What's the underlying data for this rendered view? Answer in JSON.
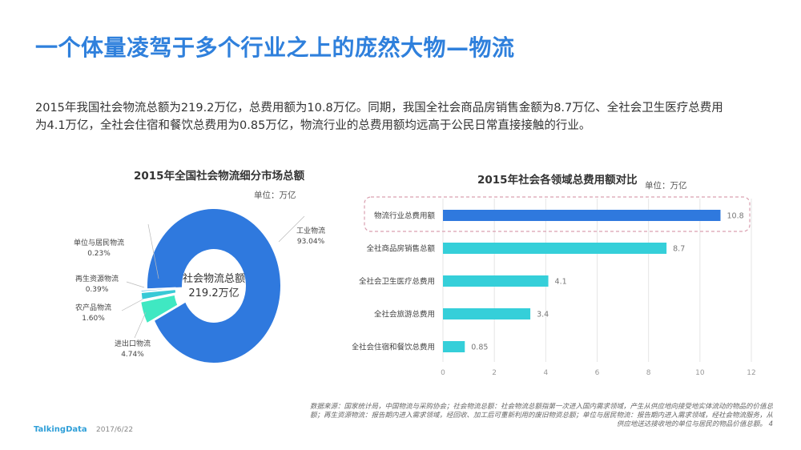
{
  "title": "一个体量凌驾于多个行业之上的庞然大物—物流",
  "paragraph": {
    "line1": "2015年我国社会物流总额为219.2万亿，总费用额为10.8万亿。同期，我国全社会商品房销售金额为8.7万亿、全社会卫生医疗总费用",
    "line2": "为4.1万亿，全社会住宿和餐饮总费用为0.85万亿，物流行业的总费用额均远高于公民日常直接接触的行业。"
  },
  "chart_data": [
    {
      "type": "pie",
      "title": "2015年全国社会物流细分市场总额",
      "unit": "单位：万亿",
      "center_label": "社会物流总额",
      "center_value": "219.2万亿",
      "slices": [
        {
          "name": "工业物流",
          "label": "93.04%",
          "value": 93.04,
          "color": "#2f79de"
        },
        {
          "name": "进出口物流",
          "label": "4.74%",
          "value": 4.74,
          "color": "#3fe8c2"
        },
        {
          "name": "农产品物流",
          "label": "1.60%",
          "value": 1.6,
          "color": "#38c9d6"
        },
        {
          "name": "再生资源物流",
          "label": "0.39%",
          "value": 0.39,
          "color": "#2a9fd0"
        },
        {
          "name": "单位与居民物流",
          "label": "0.23%",
          "value": 0.23,
          "color": "#2f79de"
        }
      ]
    },
    {
      "type": "bar",
      "orientation": "horizontal",
      "title": "2015年社会各领域总费用额对比",
      "unit": "单位：万亿",
      "categories": [
        "物流行业总费用额",
        "全社商品房销售总额",
        "全社会卫生医疗总费用",
        "全社会旅游总费用",
        "全社会住宿和餐饮总费用"
      ],
      "values": [
        10.8,
        8.7,
        4.1,
        3.4,
        0.85
      ],
      "value_labels": [
        "10.8",
        "8.7",
        "4.1",
        "3.4",
        "0.85"
      ],
      "colors": [
        "#2f79de",
        "#35cfd9",
        "#35cfd9",
        "#35cfd9",
        "#35cfd9"
      ],
      "highlight": "物流行业总费用额",
      "highlight_color": "#d9a0b0",
      "xlim": [
        0,
        12
      ],
      "xticks": [
        "0",
        "2",
        "4",
        "6",
        "8",
        "10",
        "12"
      ],
      "grid": true
    }
  ],
  "footnote": "数据来源：国家统计局，中国物流与采购协会；社会物流总额：社会物流总额指第一次进入国内需求领域，产生从供应地向接受地实体流动的物品的价值总额；再生资源物流：报告期内进入需求领域，经回收、加工后可重新利用的废旧物资总额；单位与居民物流：报告期内进入需求领域，经社会物流服务，从供应地送达接收地的单位与居民的物品价值总额。",
  "page_number": "4",
  "brand": "TalkingData",
  "date": "2017/6/22"
}
